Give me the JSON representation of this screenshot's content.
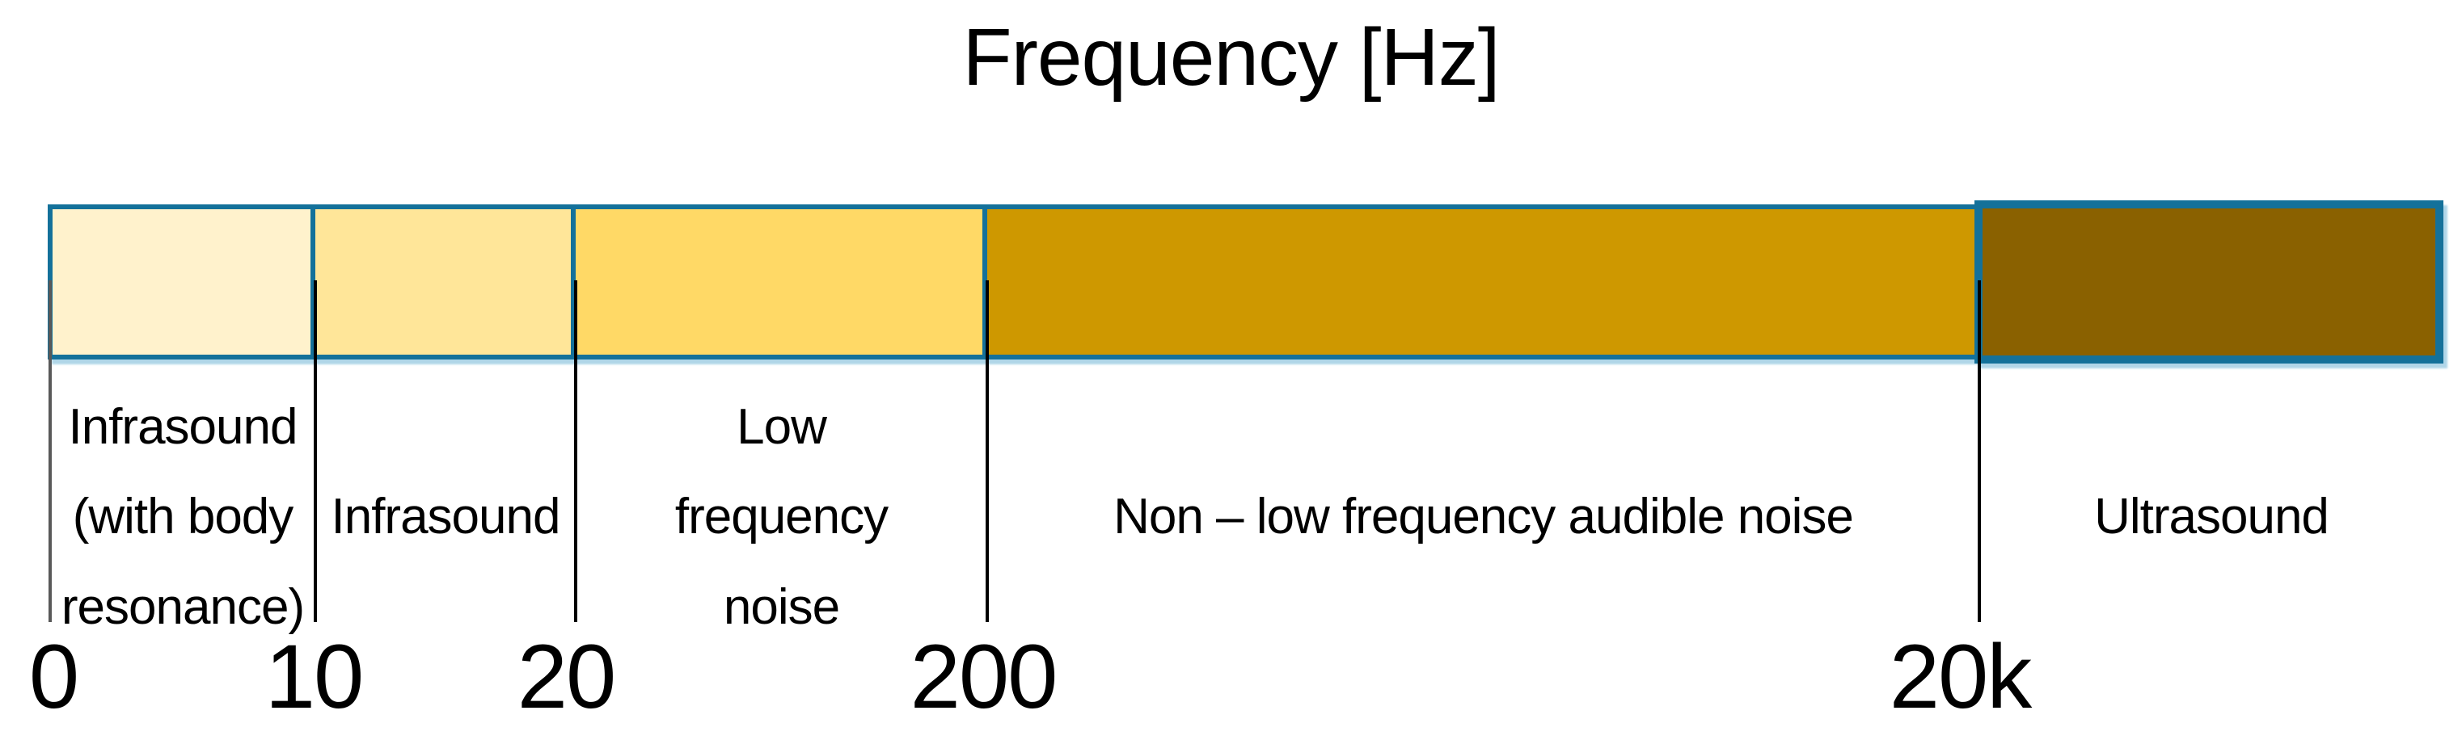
{
  "title": "Frequency [Hz]",
  "chart_data": {
    "type": "bar",
    "title": "Frequency [Hz]",
    "axis_label": "Frequency",
    "axis_unit": "Hz",
    "scale": "segmented non-linear frequency axis",
    "tick_labels": [
      "0",
      "10",
      "20",
      "200",
      "20k"
    ],
    "segments": [
      {
        "label": "Infrasound (with body resonance)",
        "label_lines": [
          "Infrasound",
          "(with body",
          "resonance)"
        ],
        "from": "0",
        "to": "10",
        "fill": "#FFF2CC"
      },
      {
        "label": "Infrasound",
        "label_lines": [
          "Infrasound"
        ],
        "from": "10",
        "to": "20",
        "fill": "#FFE699"
      },
      {
        "label": "Low frequency noise",
        "label_lines": [
          "Low",
          "frequency",
          "noise"
        ],
        "from": "20",
        "to": "200",
        "fill": "#FFD966"
      },
      {
        "label": "Non – low frequency audible noise",
        "label_lines": [
          "Non – low frequency audible noise"
        ],
        "from": "200",
        "to": "20k",
        "fill": "#CE9800"
      },
      {
        "label": "Ultrasound",
        "label_lines": [
          "Ultrasound"
        ],
        "from": "20k",
        "to": "",
        "fill": "#8A6100"
      }
    ],
    "colors": {
      "box_border": "#14719A",
      "outer_glow": "#BCDDEC",
      "tick_line": "#000000",
      "first_tick_line": "#595959",
      "text": "#000000",
      "background": "#FFFFFF"
    },
    "legend": "none",
    "grid": "off"
  }
}
